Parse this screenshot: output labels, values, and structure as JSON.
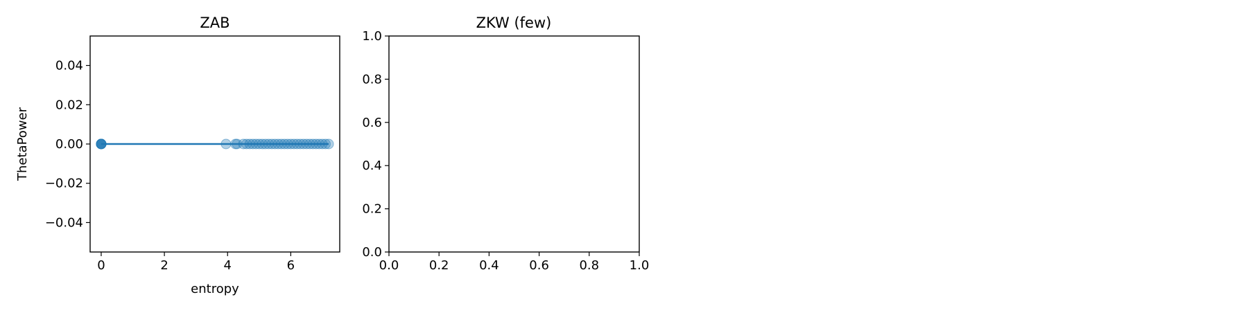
{
  "chart_data": [
    {
      "type": "scatter",
      "title": "ZAB",
      "xlabel": "entropy",
      "ylabel": "ThetaPower",
      "xlim": [
        -0.35,
        7.55
      ],
      "ylim": [
        -0.055,
        0.055
      ],
      "xticks": [
        0,
        2,
        4,
        6
      ],
      "yticks": [
        -0.04,
        -0.02,
        0.0,
        0.02,
        0.04
      ],
      "xtick_labels": [
        "0",
        "2",
        "4",
        "6"
      ],
      "ytick_labels": [
        "−0.04",
        "−0.02",
        "0.00",
        "0.02",
        "0.04"
      ],
      "grid": false,
      "color": "#1f77b4",
      "series": [
        {
          "x": [
            0,
            0,
            0,
            0,
            0,
            0,
            3.95,
            4.25,
            4.3,
            4.5,
            4.6,
            4.7,
            4.8,
            4.9,
            5.0,
            5.1,
            5.2,
            5.3,
            5.4,
            5.5,
            5.6,
            5.7,
            5.8,
            5.9,
            6.0,
            6.1,
            6.2,
            6.3,
            6.4,
            6.5,
            6.6,
            6.7,
            6.8,
            6.9,
            7.0,
            7.1,
            7.2
          ],
          "y": [
            0,
            0,
            0,
            0,
            0,
            0,
            0,
            0,
            0,
            0,
            0,
            0,
            0,
            0,
            0,
            0,
            0,
            0,
            0,
            0,
            0,
            0,
            0,
            0,
            0,
            0,
            0,
            0,
            0,
            0,
            0,
            0,
            0,
            0,
            0,
            0,
            0
          ]
        }
      ],
      "fit_line": {
        "x": [
          0,
          7.2
        ],
        "y": [
          0,
          0
        ]
      }
    },
    {
      "type": "scatter",
      "title": "ZKW (few)",
      "xlabel": "",
      "ylabel": "",
      "xlim": [
        0,
        1
      ],
      "ylim": [
        0,
        1
      ],
      "xticks": [
        0,
        0.2,
        0.4,
        0.6,
        0.8,
        1.0
      ],
      "yticks": [
        0,
        0.2,
        0.4,
        0.6,
        0.8,
        1.0
      ],
      "xtick_labels": [
        "0.0",
        "0.2",
        "0.4",
        "0.6",
        "0.8",
        "1.0"
      ],
      "ytick_labels": [
        "0.0",
        "0.2",
        "0.4",
        "0.6",
        "0.8",
        "1.0"
      ],
      "grid": false,
      "series": []
    }
  ]
}
